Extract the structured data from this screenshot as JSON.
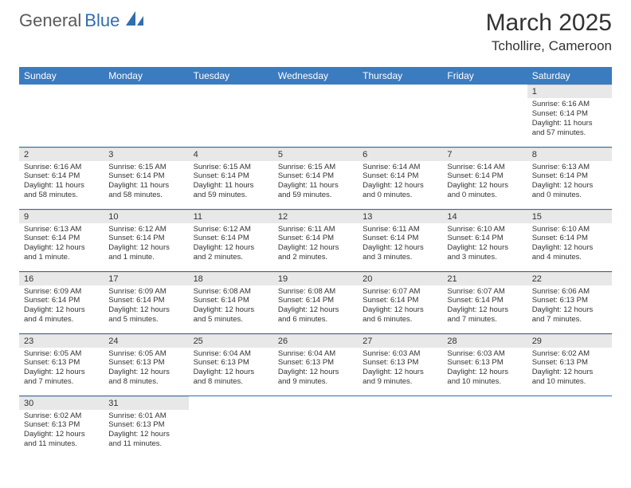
{
  "brand": {
    "general": "General",
    "blue": "Blue",
    "logo_color": "#2f6eaf",
    "text_color": "#5a5a5a"
  },
  "header": {
    "month_title": "March 2025",
    "location": "Tchollire, Cameroon"
  },
  "styling": {
    "header_bg": "#3b7bbf",
    "header_text": "#ffffff",
    "daynum_bg": "#e8e8e8",
    "row_divider": "#2f6eaf",
    "body_text": "#333333",
    "font_family": "Arial",
    "th_fontsize": 12,
    "daynum_fontsize": 11,
    "body_fontsize": 9.5
  },
  "weekdays": [
    "Sunday",
    "Monday",
    "Tuesday",
    "Wednesday",
    "Thursday",
    "Friday",
    "Saturday"
  ],
  "weeks": [
    [
      null,
      null,
      null,
      null,
      null,
      null,
      {
        "num": "1",
        "sunrise": "Sunrise: 6:16 AM",
        "sunset": "Sunset: 6:14 PM",
        "daylight": "Daylight: 11 hours and 57 minutes."
      }
    ],
    [
      {
        "num": "2",
        "sunrise": "Sunrise: 6:16 AM",
        "sunset": "Sunset: 6:14 PM",
        "daylight": "Daylight: 11 hours and 58 minutes."
      },
      {
        "num": "3",
        "sunrise": "Sunrise: 6:15 AM",
        "sunset": "Sunset: 6:14 PM",
        "daylight": "Daylight: 11 hours and 58 minutes."
      },
      {
        "num": "4",
        "sunrise": "Sunrise: 6:15 AM",
        "sunset": "Sunset: 6:14 PM",
        "daylight": "Daylight: 11 hours and 59 minutes."
      },
      {
        "num": "5",
        "sunrise": "Sunrise: 6:15 AM",
        "sunset": "Sunset: 6:14 PM",
        "daylight": "Daylight: 11 hours and 59 minutes."
      },
      {
        "num": "6",
        "sunrise": "Sunrise: 6:14 AM",
        "sunset": "Sunset: 6:14 PM",
        "daylight": "Daylight: 12 hours and 0 minutes."
      },
      {
        "num": "7",
        "sunrise": "Sunrise: 6:14 AM",
        "sunset": "Sunset: 6:14 PM",
        "daylight": "Daylight: 12 hours and 0 minutes."
      },
      {
        "num": "8",
        "sunrise": "Sunrise: 6:13 AM",
        "sunset": "Sunset: 6:14 PM",
        "daylight": "Daylight: 12 hours and 0 minutes."
      }
    ],
    [
      {
        "num": "9",
        "sunrise": "Sunrise: 6:13 AM",
        "sunset": "Sunset: 6:14 PM",
        "daylight": "Daylight: 12 hours and 1 minute."
      },
      {
        "num": "10",
        "sunrise": "Sunrise: 6:12 AM",
        "sunset": "Sunset: 6:14 PM",
        "daylight": "Daylight: 12 hours and 1 minute."
      },
      {
        "num": "11",
        "sunrise": "Sunrise: 6:12 AM",
        "sunset": "Sunset: 6:14 PM",
        "daylight": "Daylight: 12 hours and 2 minutes."
      },
      {
        "num": "12",
        "sunrise": "Sunrise: 6:11 AM",
        "sunset": "Sunset: 6:14 PM",
        "daylight": "Daylight: 12 hours and 2 minutes."
      },
      {
        "num": "13",
        "sunrise": "Sunrise: 6:11 AM",
        "sunset": "Sunset: 6:14 PM",
        "daylight": "Daylight: 12 hours and 3 minutes."
      },
      {
        "num": "14",
        "sunrise": "Sunrise: 6:10 AM",
        "sunset": "Sunset: 6:14 PM",
        "daylight": "Daylight: 12 hours and 3 minutes."
      },
      {
        "num": "15",
        "sunrise": "Sunrise: 6:10 AM",
        "sunset": "Sunset: 6:14 PM",
        "daylight": "Daylight: 12 hours and 4 minutes."
      }
    ],
    [
      {
        "num": "16",
        "sunrise": "Sunrise: 6:09 AM",
        "sunset": "Sunset: 6:14 PM",
        "daylight": "Daylight: 12 hours and 4 minutes."
      },
      {
        "num": "17",
        "sunrise": "Sunrise: 6:09 AM",
        "sunset": "Sunset: 6:14 PM",
        "daylight": "Daylight: 12 hours and 5 minutes."
      },
      {
        "num": "18",
        "sunrise": "Sunrise: 6:08 AM",
        "sunset": "Sunset: 6:14 PM",
        "daylight": "Daylight: 12 hours and 5 minutes."
      },
      {
        "num": "19",
        "sunrise": "Sunrise: 6:08 AM",
        "sunset": "Sunset: 6:14 PM",
        "daylight": "Daylight: 12 hours and 6 minutes."
      },
      {
        "num": "20",
        "sunrise": "Sunrise: 6:07 AM",
        "sunset": "Sunset: 6:14 PM",
        "daylight": "Daylight: 12 hours and 6 minutes."
      },
      {
        "num": "21",
        "sunrise": "Sunrise: 6:07 AM",
        "sunset": "Sunset: 6:14 PM",
        "daylight": "Daylight: 12 hours and 7 minutes."
      },
      {
        "num": "22",
        "sunrise": "Sunrise: 6:06 AM",
        "sunset": "Sunset: 6:13 PM",
        "daylight": "Daylight: 12 hours and 7 minutes."
      }
    ],
    [
      {
        "num": "23",
        "sunrise": "Sunrise: 6:05 AM",
        "sunset": "Sunset: 6:13 PM",
        "daylight": "Daylight: 12 hours and 7 minutes."
      },
      {
        "num": "24",
        "sunrise": "Sunrise: 6:05 AM",
        "sunset": "Sunset: 6:13 PM",
        "daylight": "Daylight: 12 hours and 8 minutes."
      },
      {
        "num": "25",
        "sunrise": "Sunrise: 6:04 AM",
        "sunset": "Sunset: 6:13 PM",
        "daylight": "Daylight: 12 hours and 8 minutes."
      },
      {
        "num": "26",
        "sunrise": "Sunrise: 6:04 AM",
        "sunset": "Sunset: 6:13 PM",
        "daylight": "Daylight: 12 hours and 9 minutes."
      },
      {
        "num": "27",
        "sunrise": "Sunrise: 6:03 AM",
        "sunset": "Sunset: 6:13 PM",
        "daylight": "Daylight: 12 hours and 9 minutes."
      },
      {
        "num": "28",
        "sunrise": "Sunrise: 6:03 AM",
        "sunset": "Sunset: 6:13 PM",
        "daylight": "Daylight: 12 hours and 10 minutes."
      },
      {
        "num": "29",
        "sunrise": "Sunrise: 6:02 AM",
        "sunset": "Sunset: 6:13 PM",
        "daylight": "Daylight: 12 hours and 10 minutes."
      }
    ],
    [
      {
        "num": "30",
        "sunrise": "Sunrise: 6:02 AM",
        "sunset": "Sunset: 6:13 PM",
        "daylight": "Daylight: 12 hours and 11 minutes."
      },
      {
        "num": "31",
        "sunrise": "Sunrise: 6:01 AM",
        "sunset": "Sunset: 6:13 PM",
        "daylight": "Daylight: 12 hours and 11 minutes."
      },
      null,
      null,
      null,
      null,
      null
    ]
  ]
}
